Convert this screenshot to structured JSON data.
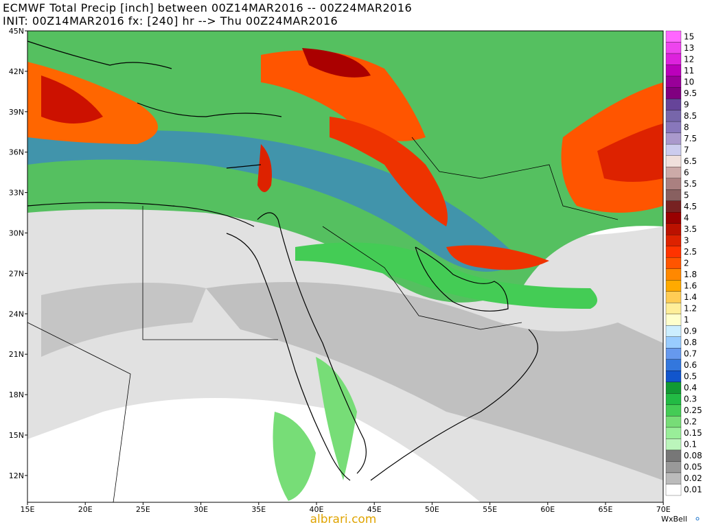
{
  "header": {
    "line1": "ECMWF Total Precip [inch] between 00Z14MAR2016 -- 00Z24MAR2016",
    "line2": "INIT: 00Z14MAR2016 fx: [240] hr --> Thu 00Z24MAR2016"
  },
  "map": {
    "lat_labels": [
      "45N",
      "42N",
      "39N",
      "36N",
      "33N",
      "30N",
      "27N",
      "24N",
      "21N",
      "18N",
      "15N",
      "12N"
    ],
    "lon_labels": [
      "15E",
      "20E",
      "25E",
      "30E",
      "35E",
      "40E",
      "45E",
      "50E",
      "55E",
      "60E",
      "65E",
      "70E"
    ]
  },
  "colorbar": {
    "levels": [
      {
        "label": "15",
        "color": "#ff66ff"
      },
      {
        "label": "13",
        "color": "#ee44ee"
      },
      {
        "label": "12",
        "color": "#dd22dd"
      },
      {
        "label": "11",
        "color": "#bb00bb"
      },
      {
        "label": "10",
        "color": "#990099"
      },
      {
        "label": "9.5",
        "color": "#800080"
      },
      {
        "label": "9",
        "color": "#664499"
      },
      {
        "label": "8.5",
        "color": "#7766aa"
      },
      {
        "label": "8",
        "color": "#8877bb"
      },
      {
        "label": "7.5",
        "color": "#aa99cc"
      },
      {
        "label": "7",
        "color": "#ccccee"
      },
      {
        "label": "6.5",
        "color": "#f0e0dc"
      },
      {
        "label": "6",
        "color": "#ccaaa8"
      },
      {
        "label": "5.5",
        "color": "#aa8080"
      },
      {
        "label": "5",
        "color": "#886060"
      },
      {
        "label": "4.5",
        "color": "#772222"
      },
      {
        "label": "4",
        "color": "#990000"
      },
      {
        "label": "3.5",
        "color": "#bb1100"
      },
      {
        "label": "3",
        "color": "#dd2200"
      },
      {
        "label": "2.5",
        "color": "#ff3300"
      },
      {
        "label": "2",
        "color": "#ff5500"
      },
      {
        "label": "1.8",
        "color": "#ff8800"
      },
      {
        "label": "1.6",
        "color": "#ffaa00"
      },
      {
        "label": "1.4",
        "color": "#ffcc55"
      },
      {
        "label": "1.2",
        "color": "#ffee99"
      },
      {
        "label": "1",
        "color": "#ffffcc"
      },
      {
        "label": "0.9",
        "color": "#cceeff"
      },
      {
        "label": "0.8",
        "color": "#99ccff"
      },
      {
        "label": "0.7",
        "color": "#6699ee"
      },
      {
        "label": "0.6",
        "color": "#3377dd"
      },
      {
        "label": "0.5",
        "color": "#1155cc"
      },
      {
        "label": "0.4",
        "color": "#119933"
      },
      {
        "label": "0.3",
        "color": "#22bb44"
      },
      {
        "label": "0.25",
        "color": "#44cc55"
      },
      {
        "label": "0.2",
        "color": "#77dd77"
      },
      {
        "label": "0.15",
        "color": "#99ee99"
      },
      {
        "label": "0.1",
        "color": "#bbf5bb"
      },
      {
        "label": "0.08",
        "color": "#777777"
      },
      {
        "label": "0.05",
        "color": "#999999"
      },
      {
        "label": "0.02",
        "color": "#bbbbbb"
      },
      {
        "label": "0.01",
        "color": "#ffffff"
      }
    ]
  },
  "footer": {
    "watermark": "albrari.com",
    "brand": "WxBell"
  }
}
